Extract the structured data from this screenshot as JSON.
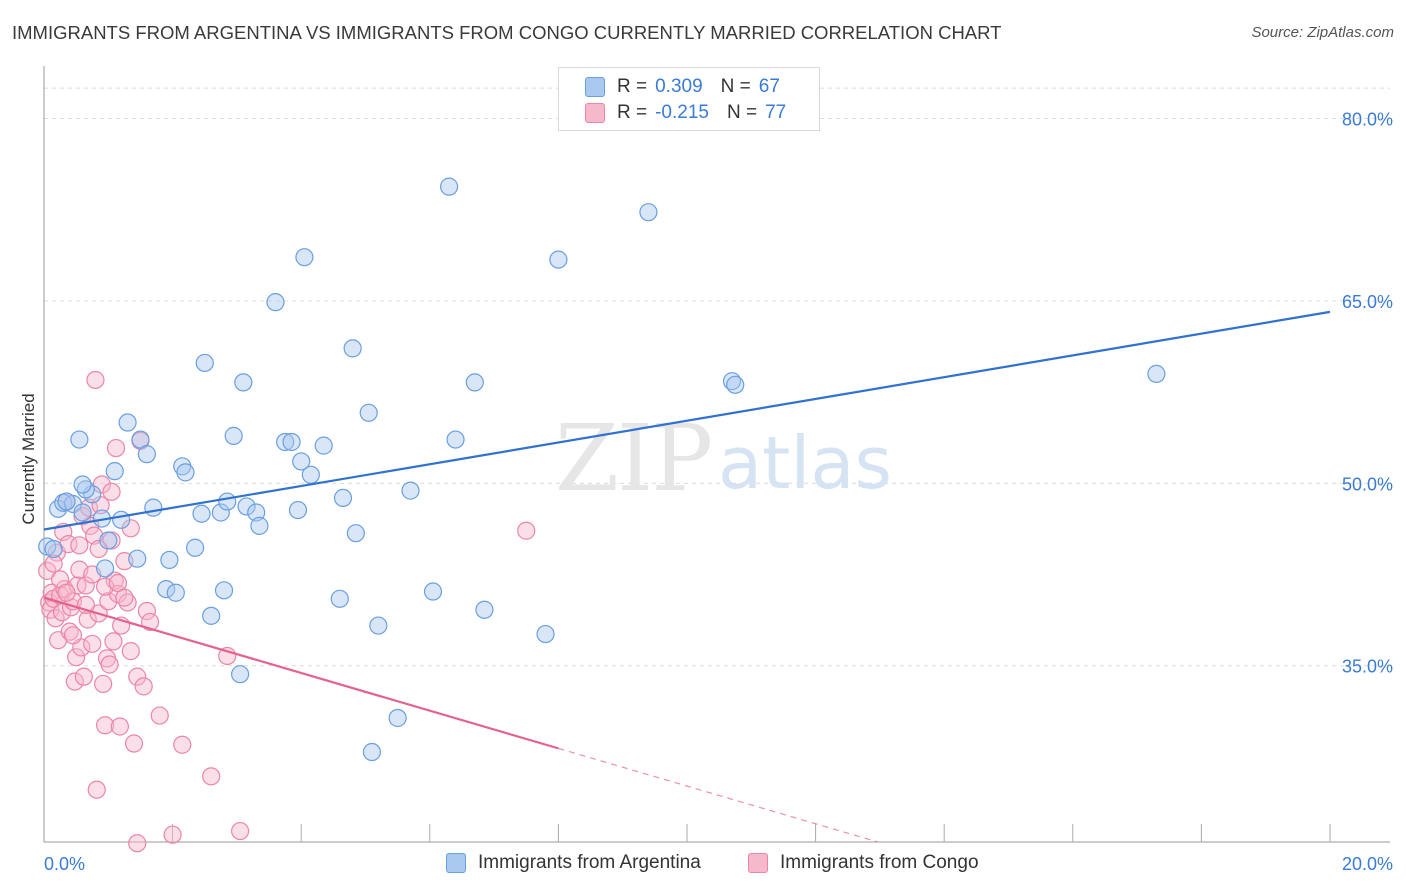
{
  "title": "IMMIGRANTS FROM ARGENTINA VS IMMIGRANTS FROM CONGO CURRENTLY MARRIED CORRELATION CHART",
  "source": "Source: ZipAtlas.com",
  "watermark": {
    "zip": "ZIP",
    "atlas": "atlas"
  },
  "colors": {
    "argentina_fill": "#a9c8f0",
    "argentina_stroke": "#6a9fe0",
    "argentina_line": "#2f72d0",
    "congo_fill": "#f6b8cb",
    "congo_stroke": "#ec86a6",
    "congo_line": "#e4628e",
    "axis_text": "#3a7bd5",
    "grid": "#dcdcdc"
  },
  "legend": {
    "rows": [
      {
        "r_label": "R =",
        "r_value": "0.309",
        "n_label": "N =",
        "n_value": "67"
      },
      {
        "r_label": "R =",
        "r_value": "-0.215",
        "n_label": "N =",
        "n_value": "77"
      }
    ]
  },
  "chart_data": {
    "type": "scatter",
    "title": "IMMIGRANTS FROM ARGENTINA VS IMMIGRANTS FROM CONGO CURRENTLY MARRIED CORRELATION CHART",
    "xlabel": "",
    "ylabel": "Currently Married",
    "xlim": [
      0,
      20
    ],
    "ylim": [
      20.5,
      83.5
    ],
    "x_tick_labels": [
      {
        "value": 0,
        "label": "0.0%"
      },
      {
        "value": 20,
        "label": "20.0%"
      }
    ],
    "y_tick_labels": [
      {
        "value": 35,
        "label": "35.0%"
      },
      {
        "value": 50,
        "label": "50.0%"
      },
      {
        "value": 65,
        "label": "65.0%"
      },
      {
        "value": 80,
        "label": "80.0%"
      }
    ],
    "grid": true,
    "legend_position": "top-center",
    "series": [
      {
        "name": "Immigrants from Argentina",
        "r": 0.309,
        "n": 67,
        "trend": {
          "x0": 0,
          "y0": 46.2,
          "x1": 20,
          "y1": 64.1
        },
        "points": [
          [
            0.05,
            44.8
          ],
          [
            0.15,
            44.6
          ],
          [
            0.22,
            47.9
          ],
          [
            0.3,
            48.4
          ],
          [
            0.45,
            48.3
          ],
          [
            0.55,
            53.6
          ],
          [
            0.6,
            47.6
          ],
          [
            0.75,
            49.1
          ],
          [
            0.65,
            49.5
          ],
          [
            0.95,
            43.0
          ],
          [
            1.0,
            45.3
          ],
          [
            1.2,
            47.0
          ],
          [
            1.3,
            55.0
          ],
          [
            1.5,
            53.6
          ],
          [
            1.45,
            43.8
          ],
          [
            1.6,
            52.4
          ],
          [
            1.7,
            48.0
          ],
          [
            1.9,
            41.3
          ],
          [
            1.95,
            43.7
          ],
          [
            2.05,
            41.0
          ],
          [
            2.15,
            51.4
          ],
          [
            2.2,
            50.9
          ],
          [
            2.35,
            44.7
          ],
          [
            2.45,
            47.5
          ],
          [
            2.5,
            59.9
          ],
          [
            2.6,
            39.1
          ],
          [
            2.75,
            47.6
          ],
          [
            2.8,
            41.2
          ],
          [
            2.85,
            48.5
          ],
          [
            2.95,
            53.9
          ],
          [
            3.05,
            34.3
          ],
          [
            3.1,
            58.3
          ],
          [
            3.15,
            48.1
          ],
          [
            3.3,
            47.6
          ],
          [
            3.35,
            46.5
          ],
          [
            3.6,
            64.9
          ],
          [
            3.75,
            53.4
          ],
          [
            3.85,
            53.4
          ],
          [
            3.95,
            47.8
          ],
          [
            4.0,
            51.8
          ],
          [
            4.05,
            68.6
          ],
          [
            4.15,
            50.7
          ],
          [
            4.35,
            53.1
          ],
          [
            4.6,
            40.5
          ],
          [
            4.65,
            48.8
          ],
          [
            4.8,
            61.1
          ],
          [
            4.85,
            45.9
          ],
          [
            5.05,
            55.8
          ],
          [
            5.2,
            38.3
          ],
          [
            5.1,
            27.9
          ],
          [
            5.5,
            30.7
          ],
          [
            5.7,
            49.4
          ],
          [
            6.05,
            41.1
          ],
          [
            6.3,
            74.4
          ],
          [
            6.4,
            53.6
          ],
          [
            6.7,
            58.3
          ],
          [
            6.85,
            39.6
          ],
          [
            7.8,
            37.6
          ],
          [
            8.0,
            68.4
          ],
          [
            9.4,
            72.3
          ],
          [
            10.7,
            58.4
          ],
          [
            10.75,
            58.1
          ],
          [
            17.3,
            59.0
          ],
          [
            0.35,
            48.5
          ],
          [
            0.6,
            49.9
          ],
          [
            0.9,
            47.1
          ],
          [
            1.1,
            51.0
          ]
        ]
      },
      {
        "name": "Immigrants from Congo",
        "r": -0.215,
        "n": 77,
        "trend": {
          "x0": 0,
          "y0": 40.6,
          "x1": 8.0,
          "y1": 28.2
        },
        "trend_dashed": {
          "x0": 8.0,
          "y0": 28.2,
          "x1": 20,
          "y1": 9.6
        },
        "points": [
          [
            0.05,
            42.8
          ],
          [
            0.08,
            40.2
          ],
          [
            0.1,
            39.6
          ],
          [
            0.12,
            41.0
          ],
          [
            0.15,
            40.5
          ],
          [
            0.18,
            38.9
          ],
          [
            0.2,
            44.3
          ],
          [
            0.22,
            37.1
          ],
          [
            0.25,
            40.8
          ],
          [
            0.28,
            39.4
          ],
          [
            0.3,
            46.0
          ],
          [
            0.32,
            41.3
          ],
          [
            0.35,
            48.5
          ],
          [
            0.38,
            45.0
          ],
          [
            0.4,
            37.8
          ],
          [
            0.42,
            39.8
          ],
          [
            0.45,
            40.3
          ],
          [
            0.48,
            33.7
          ],
          [
            0.5,
            35.7
          ],
          [
            0.52,
            41.6
          ],
          [
            0.55,
            42.9
          ],
          [
            0.58,
            36.5
          ],
          [
            0.6,
            47.3
          ],
          [
            0.62,
            34.1
          ],
          [
            0.65,
            41.6
          ],
          [
            0.68,
            38.8
          ],
          [
            0.7,
            48.0
          ],
          [
            0.72,
            46.5
          ],
          [
            0.75,
            42.5
          ],
          [
            0.78,
            45.7
          ],
          [
            0.8,
            58.5
          ],
          [
            0.82,
            24.8
          ],
          [
            0.85,
            39.3
          ],
          [
            0.88,
            48.2
          ],
          [
            0.9,
            49.9
          ],
          [
            0.92,
            33.5
          ],
          [
            0.95,
            30.1
          ],
          [
            0.98,
            35.6
          ],
          [
            1.0,
            40.3
          ],
          [
            1.02,
            35.1
          ],
          [
            1.05,
            45.3
          ],
          [
            1.08,
            37.0
          ],
          [
            1.1,
            42.0
          ],
          [
            1.12,
            52.9
          ],
          [
            1.15,
            40.9
          ],
          [
            1.18,
            30.0
          ],
          [
            1.2,
            38.3
          ],
          [
            1.25,
            43.6
          ],
          [
            1.3,
            40.2
          ],
          [
            1.35,
            36.2
          ],
          [
            1.4,
            28.6
          ],
          [
            1.45,
            34.1
          ],
          [
            1.5,
            53.5
          ],
          [
            1.55,
            33.3
          ],
          [
            1.6,
            39.5
          ],
          [
            1.65,
            38.6
          ],
          [
            1.8,
            30.9
          ],
          [
            2.0,
            21.1
          ],
          [
            2.15,
            28.5
          ],
          [
            2.6,
            25.9
          ],
          [
            2.85,
            35.8
          ],
          [
            3.05,
            21.4
          ],
          [
            7.5,
            46.1
          ],
          [
            0.15,
            43.4
          ],
          [
            0.25,
            42.1
          ],
          [
            0.35,
            41.0
          ],
          [
            0.45,
            37.5
          ],
          [
            0.55,
            44.9
          ],
          [
            0.65,
            40.0
          ],
          [
            0.75,
            36.8
          ],
          [
            0.85,
            44.6
          ],
          [
            0.95,
            41.5
          ],
          [
            1.05,
            49.3
          ],
          [
            1.15,
            41.8
          ],
          [
            1.25,
            40.6
          ],
          [
            1.35,
            46.3
          ],
          [
            1.45,
            20.4
          ]
        ]
      }
    ]
  },
  "bottom_legend": [
    {
      "label": "Immigrants from Argentina"
    },
    {
      "label": "Immigrants from Congo"
    }
  ]
}
